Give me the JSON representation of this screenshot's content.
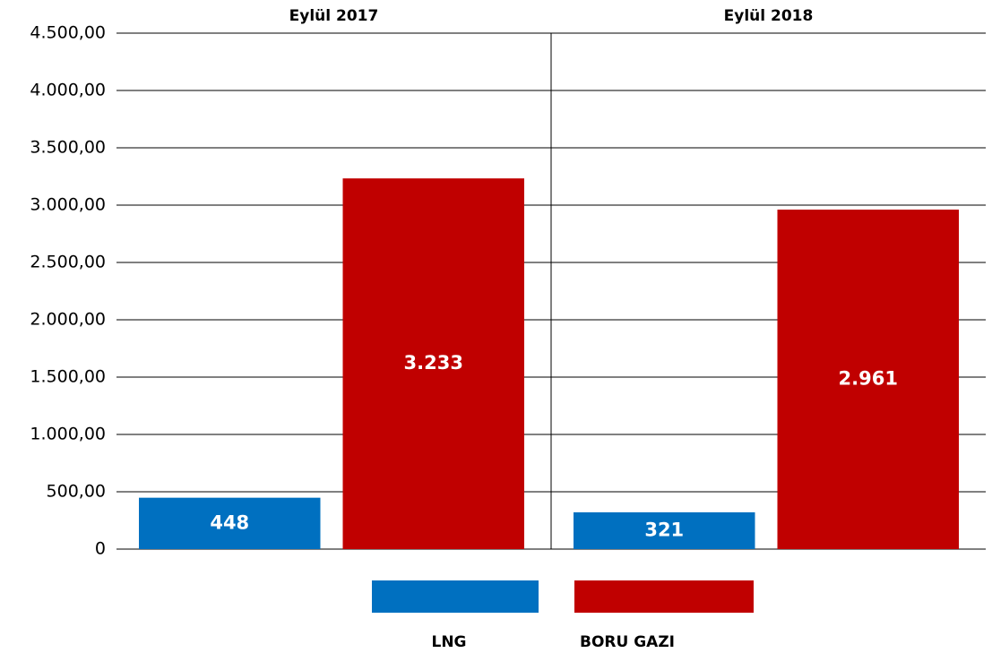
{
  "chart_data": {
    "type": "bar",
    "categories": [
      "Eylül 2017",
      "Eylül 2018"
    ],
    "series": [
      {
        "name": "LNG",
        "color": "#0070c0",
        "values": [
          448,
          321
        ],
        "value_labels": [
          "448",
          "321"
        ]
      },
      {
        "name": "BORU GAZI",
        "color": "#c00000",
        "values": [
          3233,
          2961
        ],
        "value_labels": [
          "3.233",
          "2.961"
        ]
      }
    ],
    "ylim": [
      0,
      4500
    ],
    "yticks": [
      0,
      {
        "value": 500,
        "label": "500,00"
      },
      {
        "value": 1000,
        "label": "1.000,00"
      },
      {
        "value": 1500,
        "label": "1.500,00"
      },
      {
        "value": 2000,
        "label": "2.000,00"
      },
      {
        "value": 2500,
        "label": "2.500,00"
      },
      {
        "value": 3000,
        "label": "3.000,00"
      },
      {
        "value": 3500,
        "label": "3.500,00"
      },
      {
        "value": 4000,
        "label": "4.000,00"
      },
      {
        "value": 4500,
        "label": "4.500,00"
      }
    ],
    "grid": true,
    "legend": "bottom"
  }
}
